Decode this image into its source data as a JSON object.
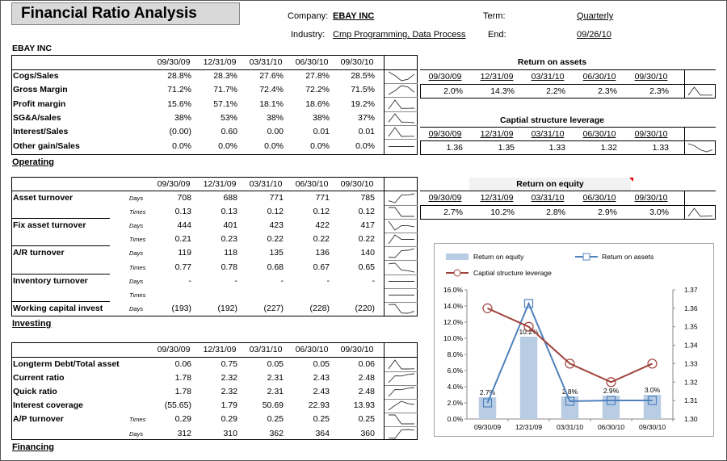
{
  "header": {
    "title": "Financial Ratio Analysis",
    "company_label": "Company:",
    "company_value": "EBAY INC",
    "industry_label": "Industry:",
    "industry_value": "Cmp Programming, Data Process",
    "term_label": "Term:",
    "term_value": "Quarterly",
    "end_label": "End:",
    "end_value": "09/26/10",
    "entity_name": "EBAY INC"
  },
  "periods": [
    "09/30/09",
    "12/31/09",
    "03/31/10",
    "06/30/10",
    "09/30/10"
  ],
  "operating": {
    "link": "Operating",
    "rows": [
      {
        "label": "Cogs/Sales",
        "values": [
          "28.8%",
          "28.3%",
          "27.6%",
          "27.8%",
          "28.5%"
        ],
        "nums": [
          28.8,
          28.3,
          27.6,
          27.8,
          28.5
        ]
      },
      {
        "label": "Gross Margin",
        "values": [
          "71.2%",
          "71.7%",
          "72.4%",
          "72.2%",
          "71.5%"
        ],
        "nums": [
          71.2,
          71.7,
          72.4,
          72.2,
          71.5
        ]
      },
      {
        "label": "Profit margin",
        "values": [
          "15.6%",
          "57.1%",
          "18.1%",
          "18.6%",
          "19.2%"
        ],
        "nums": [
          15.6,
          57.1,
          18.1,
          18.6,
          19.2
        ]
      },
      {
        "label": "SG&A/sales",
        "values": [
          "38%",
          "53%",
          "38%",
          "38%",
          "37%"
        ],
        "nums": [
          38,
          53,
          38,
          38,
          37
        ]
      },
      {
        "label": "Interest/Sales",
        "values": [
          "(0.00)",
          "0.60",
          "0.00",
          "0.01",
          "0.01"
        ],
        "nums": [
          0,
          0.6,
          0,
          0.01,
          0.01
        ]
      },
      {
        "label": "Other gain/Sales",
        "values": [
          "0.0%",
          "0.0%",
          "0.0%",
          "0.0%",
          "0.0%"
        ],
        "nums": [
          0,
          0,
          0,
          0,
          0
        ]
      }
    ]
  },
  "investing": {
    "link": "Investing",
    "rows": [
      {
        "label": "Asset turnover",
        "unit": "Days",
        "values": [
          "708",
          "688",
          "771",
          "771",
          "785"
        ],
        "nums": [
          708,
          688,
          771,
          771,
          785
        ]
      },
      {
        "label": "",
        "unit": "Times",
        "values": [
          "0.13",
          "0.13",
          "0.12",
          "0.12",
          "0.12"
        ],
        "nums": [
          0.13,
          0.13,
          0.12,
          0.12,
          0.12
        ]
      },
      {
        "label": "Fix asset turnover",
        "unit": "Days",
        "values": [
          "444",
          "401",
          "423",
          "422",
          "417"
        ],
        "nums": [
          444,
          401,
          423,
          422,
          417
        ]
      },
      {
        "label": "",
        "unit": "Times",
        "values": [
          "0.21",
          "0.23",
          "0.22",
          "0.22",
          "0.22"
        ],
        "nums": [
          0.21,
          0.23,
          0.22,
          0.22,
          0.22
        ]
      },
      {
        "label": "A/R turnover",
        "unit": "Days",
        "values": [
          "119",
          "118",
          "135",
          "136",
          "140"
        ],
        "nums": [
          119,
          118,
          135,
          136,
          140
        ]
      },
      {
        "label": "",
        "unit": "Times",
        "values": [
          "0.77",
          "0.78",
          "0.68",
          "0.67",
          "0.65"
        ],
        "nums": [
          0.77,
          0.78,
          0.68,
          0.67,
          0.65
        ]
      },
      {
        "label": "Inventory turnover",
        "unit": "Days",
        "values": [
          "-",
          "-",
          "-",
          "-",
          "-"
        ],
        "nums": [
          0,
          0,
          0,
          0,
          0
        ]
      },
      {
        "label": "",
        "unit": "Times",
        "values": [
          "",
          "",
          "",
          "",
          ""
        ],
        "nums": [
          0,
          0,
          0,
          0,
          0
        ]
      },
      {
        "label": "Working capital invest",
        "unit": "Days",
        "values": [
          "(193)",
          "(192)",
          "(227)",
          "(228)",
          "(220)"
        ],
        "nums": [
          -193,
          -192,
          -227,
          -228,
          -220
        ]
      }
    ]
  },
  "financing": {
    "link": "Financing",
    "rows": [
      {
        "label": "Longterm Debt/Total asset",
        "unit": "",
        "values": [
          "0.06",
          "0.75",
          "0.05",
          "0.05",
          "0.06"
        ],
        "nums": [
          0.06,
          0.75,
          0.05,
          0.05,
          0.06
        ]
      },
      {
        "label": "Current ratio",
        "unit": "",
        "values": [
          "1.78",
          "2.32",
          "2.31",
          "2.43",
          "2.48"
        ],
        "nums": [
          1.78,
          2.32,
          2.31,
          2.43,
          2.48
        ]
      },
      {
        "label": "Quick ratio",
        "unit": "",
        "values": [
          "1.78",
          "2.32",
          "2.31",
          "2.43",
          "2.48"
        ],
        "nums": [
          1.78,
          2.32,
          2.31,
          2.43,
          2.48
        ]
      },
      {
        "label": "Interest coverage",
        "unit": "",
        "values": [
          "(55.65)",
          "1.79",
          "50.69",
          "22.93",
          "13.93"
        ],
        "nums": [
          -55.65,
          1.79,
          50.69,
          22.93,
          13.93
        ]
      },
      {
        "label": "A/P turnover",
        "unit": "Times",
        "values": [
          "0.29",
          "0.29",
          "0.25",
          "0.25",
          "0.25"
        ],
        "nums": [
          0.29,
          0.29,
          0.25,
          0.25,
          0.25
        ]
      },
      {
        "label": "",
        "unit": "Days",
        "values": [
          "312",
          "310",
          "362",
          "364",
          "360"
        ],
        "nums": [
          312,
          310,
          362,
          364,
          360
        ]
      }
    ]
  },
  "return_on_assets": {
    "title": "Return on assets",
    "values": [
      "2.0%",
      "14.3%",
      "2.2%",
      "2.3%",
      "2.3%"
    ],
    "nums": [
      2.0,
      14.3,
      2.2,
      2.3,
      2.3
    ]
  },
  "capital_structure": {
    "title": "Captial structure leverage",
    "values": [
      "1.36",
      "1.35",
      "1.33",
      "1.32",
      "1.33"
    ],
    "nums": [
      1.36,
      1.35,
      1.33,
      1.32,
      1.33
    ]
  },
  "return_on_equity": {
    "title": "Return on equity",
    "values": [
      "2.7%",
      "10.2%",
      "2.8%",
      "2.9%",
      "3.0%"
    ],
    "nums": [
      2.7,
      10.2,
      2.8,
      2.9,
      3.0
    ]
  },
  "chart_data": {
    "type": "bar",
    "categories": [
      "09/30/09",
      "12/31/09",
      "03/31/10",
      "06/30/10",
      "09/30/10"
    ],
    "series": [
      {
        "name": "Return on equity",
        "kind": "bar",
        "axis": "left",
        "values": [
          2.7,
          10.2,
          2.8,
          2.9,
          3.0
        ],
        "labels": [
          "2.7%",
          "10.2%",
          "2.8%",
          "2.9%",
          "3.0%"
        ],
        "color": "#b8cce4"
      },
      {
        "name": "Return on assets",
        "kind": "line",
        "axis": "left",
        "values": [
          2.0,
          14.3,
          2.2,
          2.3,
          2.3
        ],
        "color": "#4f81bd"
      },
      {
        "name": "Captial structure leverage",
        "kind": "line",
        "axis": "right",
        "values": [
          1.36,
          1.35,
          1.33,
          1.32,
          1.33
        ],
        "color": "#a0413b"
      }
    ],
    "y_left": {
      "min": 0,
      "max": 16,
      "ticks": [
        "0.0%",
        "2.0%",
        "4.0%",
        "6.0%",
        "8.0%",
        "10.0%",
        "12.0%",
        "14.0%",
        "16.0%"
      ]
    },
    "y_right": {
      "min": 1.3,
      "max": 1.37,
      "ticks": [
        "1.30",
        "1.31",
        "1.32",
        "1.33",
        "1.34",
        "1.35",
        "1.36",
        "1.37"
      ]
    },
    "legend_position": "top"
  }
}
